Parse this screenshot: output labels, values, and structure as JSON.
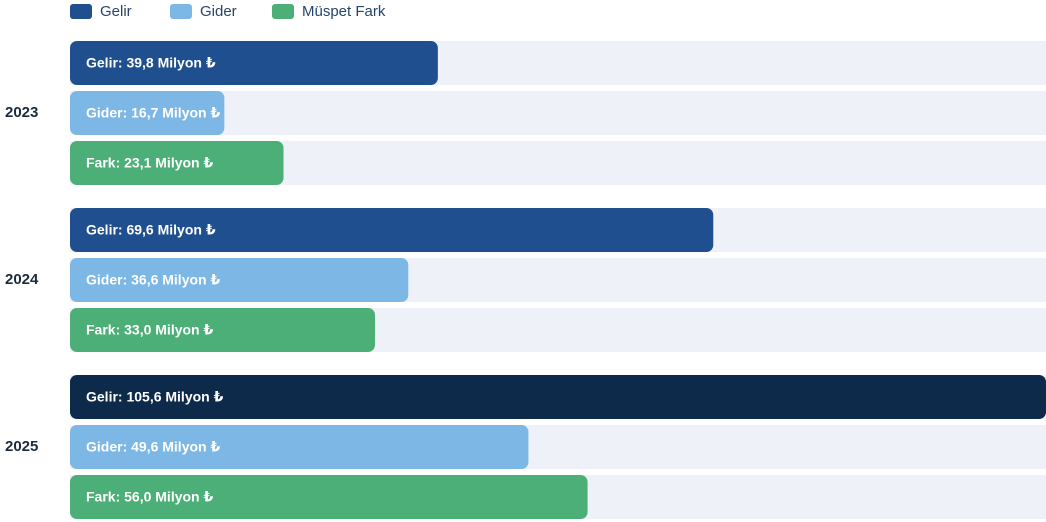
{
  "chart_data": {
    "type": "bar",
    "orientation": "horizontal",
    "legend": "top-left",
    "categories": [
      "2023",
      "2024",
      "2025"
    ],
    "series": [
      {
        "name": "Gelir",
        "color": "#1f4f8e",
        "colors": [
          "#1f4f8e",
          "#1f4f8e",
          "#0e2a4b"
        ],
        "values": [
          39.8,
          69.6,
          105.6
        ],
        "value_labels": [
          "Gelir: 39,8 Milyon ₺",
          "Gelir: 69,6 Milyon ₺",
          "Gelir: 105,6 Milyon ₺"
        ]
      },
      {
        "name": "Gider",
        "color": "#7db7e6",
        "values": [
          16.7,
          36.6,
          49.6
        ],
        "value_labels": [
          "Gider: 16,7 Milyon ₺",
          "Gider: 36,6 Milyon ₺",
          "Gider: 49,6 Milyon ₺"
        ]
      },
      {
        "name": "Müspet Fark",
        "color": "#4caf78",
        "values": [
          23.1,
          33.0,
          56.0
        ],
        "value_labels": [
          "Fark: 23,1 Milyon ₺",
          "Fark: 33,0 Milyon ₺",
          "Fark: 56,0 Milyon ₺"
        ]
      }
    ]
  }
}
